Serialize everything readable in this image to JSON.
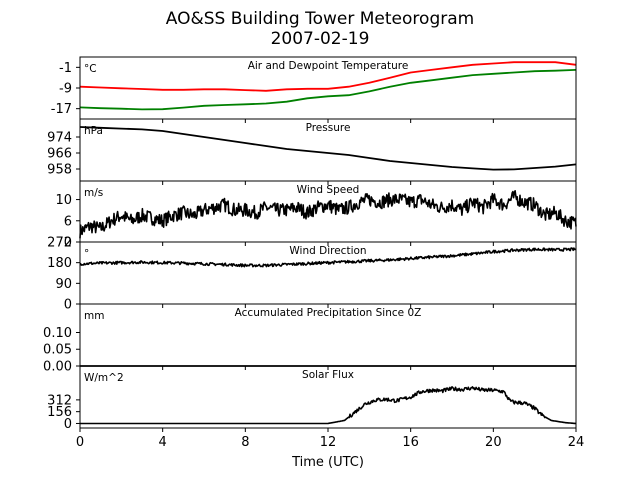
{
  "figure": {
    "title": "AO&SS Building Tower Meteorogram",
    "subtitle": "2007-02-19",
    "xlabel": "Time (UTC)"
  },
  "chart_data": [
    {
      "type": "line",
      "title": "Air and Dewpoint Temperature",
      "unit": "°C",
      "x_ticks": [
        0,
        4,
        8,
        12,
        16,
        20,
        24
      ],
      "xlim": [
        0,
        24
      ],
      "ylim": [
        -21,
        3
      ],
      "y_ticks": [
        -1,
        -9,
        -17
      ],
      "series": [
        {
          "color": "#ff0000",
          "x": [
            0,
            1,
            2,
            3,
            4,
            5,
            6,
            7,
            8,
            9,
            10,
            11,
            12,
            13,
            14,
            15,
            16,
            17,
            18,
            19,
            20,
            21,
            22,
            23,
            24
          ],
          "values": [
            -8.5,
            -8.8,
            -9.1,
            -9.4,
            -9.7,
            -9.7,
            -9.5,
            -9.5,
            -9.8,
            -10.1,
            -9.5,
            -9.3,
            -9.3,
            -8.5,
            -7,
            -5,
            -3,
            -2,
            -1,
            0,
            0.5,
            1,
            1,
            1,
            0
          ]
        },
        {
          "color": "#008000",
          "x": [
            0,
            1,
            2,
            3,
            4,
            5,
            6,
            7,
            8,
            9,
            10,
            11,
            12,
            13,
            14,
            15,
            16,
            17,
            18,
            19,
            20,
            21,
            22,
            23,
            24
          ],
          "values": [
            -16.5,
            -16.8,
            -17,
            -17.3,
            -17.2,
            -16.6,
            -15.9,
            -15.6,
            -15.3,
            -15,
            -14.3,
            -13,
            -12.2,
            -11.8,
            -10.3,
            -8.5,
            -7,
            -6,
            -5,
            -4,
            -3.5,
            -3,
            -2.5,
            -2.3,
            -2
          ]
        }
      ]
    },
    {
      "type": "line",
      "title": "Pressure",
      "unit": "hPa",
      "x_ticks": [
        0,
        4,
        8,
        12,
        16,
        20,
        24
      ],
      "xlim": [
        0,
        24
      ],
      "ylim": [
        952,
        983
      ],
      "y_ticks": [
        974,
        966,
        958
      ],
      "series": [
        {
          "color": "#000000",
          "x": [
            0,
            1,
            2,
            3,
            4,
            5,
            6,
            7,
            8,
            9,
            10,
            11,
            12,
            13,
            14,
            15,
            16,
            17,
            18,
            19,
            20,
            21,
            22,
            23,
            24
          ],
          "values": [
            979,
            978.6,
            978.2,
            977.8,
            977,
            975.5,
            974,
            972.5,
            971,
            969.5,
            968,
            967,
            966,
            965,
            963.5,
            962,
            961,
            960,
            959,
            958.3,
            957.7,
            957.8,
            958.5,
            959.2,
            960.3
          ]
        }
      ]
    },
    {
      "type": "line",
      "title": "Wind Speed",
      "unit": "m/s",
      "x_ticks": [
        0,
        4,
        8,
        12,
        16,
        20,
        24
      ],
      "xlim": [
        0,
        24
      ],
      "ylim": [
        2,
        13.5
      ],
      "y_ticks": [
        10,
        6,
        2
      ],
      "series": [
        {
          "color": "#000000",
          "x": [
            0,
            0.5,
            1,
            1.5,
            2,
            2.5,
            3,
            3.5,
            4,
            4.5,
            5,
            5.5,
            6,
            6.5,
            7,
            7.5,
            8,
            8.5,
            9,
            9.5,
            10,
            10.5,
            11,
            11.5,
            12,
            12.5,
            13,
            13.5,
            14,
            14.5,
            15,
            15.5,
            16,
            16.5,
            17,
            17.5,
            18,
            18.5,
            19,
            19.5,
            20,
            20.5,
            21,
            21.5,
            22,
            22.5,
            23,
            23.5,
            24
          ],
          "values": [
            4,
            5,
            4.5,
            6,
            7,
            6,
            7,
            6.5,
            6,
            7,
            7.5,
            7,
            8,
            8.5,
            9,
            8,
            8,
            7.5,
            8.5,
            8,
            8,
            8.5,
            7.5,
            8.5,
            9,
            8,
            8.5,
            9.5,
            10,
            9.5,
            10,
            10,
            9.5,
            10,
            9,
            8.5,
            9,
            8,
            9.5,
            8.5,
            10,
            9,
            10.5,
            9.5,
            9,
            7,
            7.5,
            6,
            5.5
          ],
          "noise": 1.3
        }
      ]
    },
    {
      "type": "line",
      "title": "Wind Direction",
      "unit": "°",
      "x_ticks": [
        0,
        4,
        8,
        12,
        16,
        20,
        24
      ],
      "xlim": [
        0,
        24
      ],
      "ylim": [
        0,
        270
      ],
      "y_ticks": [
        270,
        180,
        90,
        0
      ],
      "series": [
        {
          "color": "#000000",
          "x": [
            0,
            1,
            2,
            3,
            4,
            5,
            6,
            7,
            8,
            9,
            10,
            11,
            12,
            13,
            14,
            15,
            16,
            17,
            18,
            19,
            20,
            21,
            22,
            23,
            24
          ],
          "values": [
            175,
            178,
            180,
            182,
            180,
            178,
            175,
            172,
            168,
            168,
            172,
            176,
            180,
            184,
            188,
            192,
            198,
            204,
            210,
            218,
            228,
            234,
            238,
            236,
            238
          ],
          "noise": 6
        }
      ]
    },
    {
      "type": "line",
      "title": "Accumulated Precipitation Since 0Z",
      "unit": "mm",
      "x_ticks": [
        0,
        4,
        8,
        12,
        16,
        20,
        24
      ],
      "xlim": [
        0,
        24
      ],
      "ylim": [
        0,
        0.185
      ],
      "y_ticks": [
        0.1,
        0.05,
        0.0
      ],
      "y_tick_labels": [
        "0.10",
        "0.05",
        "0.00"
      ],
      "series": [
        {
          "color": "#000000",
          "x": [
            0,
            24
          ],
          "values": [
            0,
            0
          ]
        }
      ]
    },
    {
      "type": "line",
      "title": "Solar Flux",
      "unit": "W/m^2",
      "x_ticks": [
        0,
        4,
        8,
        12,
        16,
        20,
        24
      ],
      "x_tick_labels": [
        "0",
        "4",
        "8",
        "12",
        "16",
        "20",
        "24"
      ],
      "xlim": [
        0,
        24
      ],
      "ylim": [
        -60,
        760
      ],
      "y_ticks": [
        312,
        156,
        0
      ],
      "series": [
        {
          "color": "#000000",
          "x": [
            0,
            12,
            12.8,
            13.3,
            13.8,
            14.3,
            14.8,
            15.3,
            16,
            16.5,
            17,
            17.5,
            18,
            18.5,
            19,
            19.5,
            20,
            20.5,
            20.8,
            21,
            21.5,
            22,
            22.3,
            22.8,
            23.5,
            24
          ],
          "values": [
            0,
            0,
            40,
            150,
            260,
            310,
            320,
            300,
            350,
            420,
            440,
            430,
            460,
            450,
            470,
            440,
            440,
            420,
            300,
            280,
            270,
            200,
            120,
            40,
            10,
            0
          ],
          "noise_from": 13,
          "noise_to": 22.5,
          "noise": 25
        }
      ]
    }
  ]
}
